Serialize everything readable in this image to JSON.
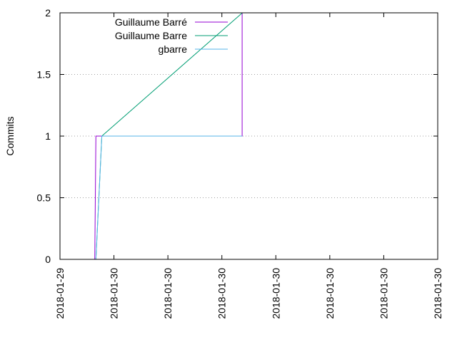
{
  "chart_data": {
    "type": "line",
    "title": "",
    "xlabel": "",
    "ylabel": "Commits",
    "x_ticks": [
      "2018-01-29",
      "2018-01-30",
      "2018-01-30",
      "2018-01-30",
      "2018-01-30",
      "2018-01-30",
      "2018-01-30",
      "2018-01-30"
    ],
    "y_ticks": [
      "0",
      "0.5",
      "1",
      "1.5",
      "2"
    ],
    "ylim": [
      0,
      2
    ],
    "grid": "horizontal dotted at y ticks",
    "legend_position": "top-left",
    "series": [
      {
        "name": "Guillaume Barré",
        "color": "#9400d3",
        "x": [
          0.645,
          0.665,
          3.375,
          3.375,
          3.38
        ],
        "y": [
          0,
          1,
          1,
          2,
          2
        ]
      },
      {
        "name": "Guillaume Barre",
        "color": "#009e73",
        "x": [
          0.665,
          0.775,
          3.38
        ],
        "y": [
          0,
          1,
          2
        ]
      },
      {
        "name": "gbarre",
        "color": "#56b4e9",
        "x": [
          0.665,
          0.775,
          3.375
        ],
        "y": [
          0,
          1,
          1
        ]
      }
    ]
  }
}
